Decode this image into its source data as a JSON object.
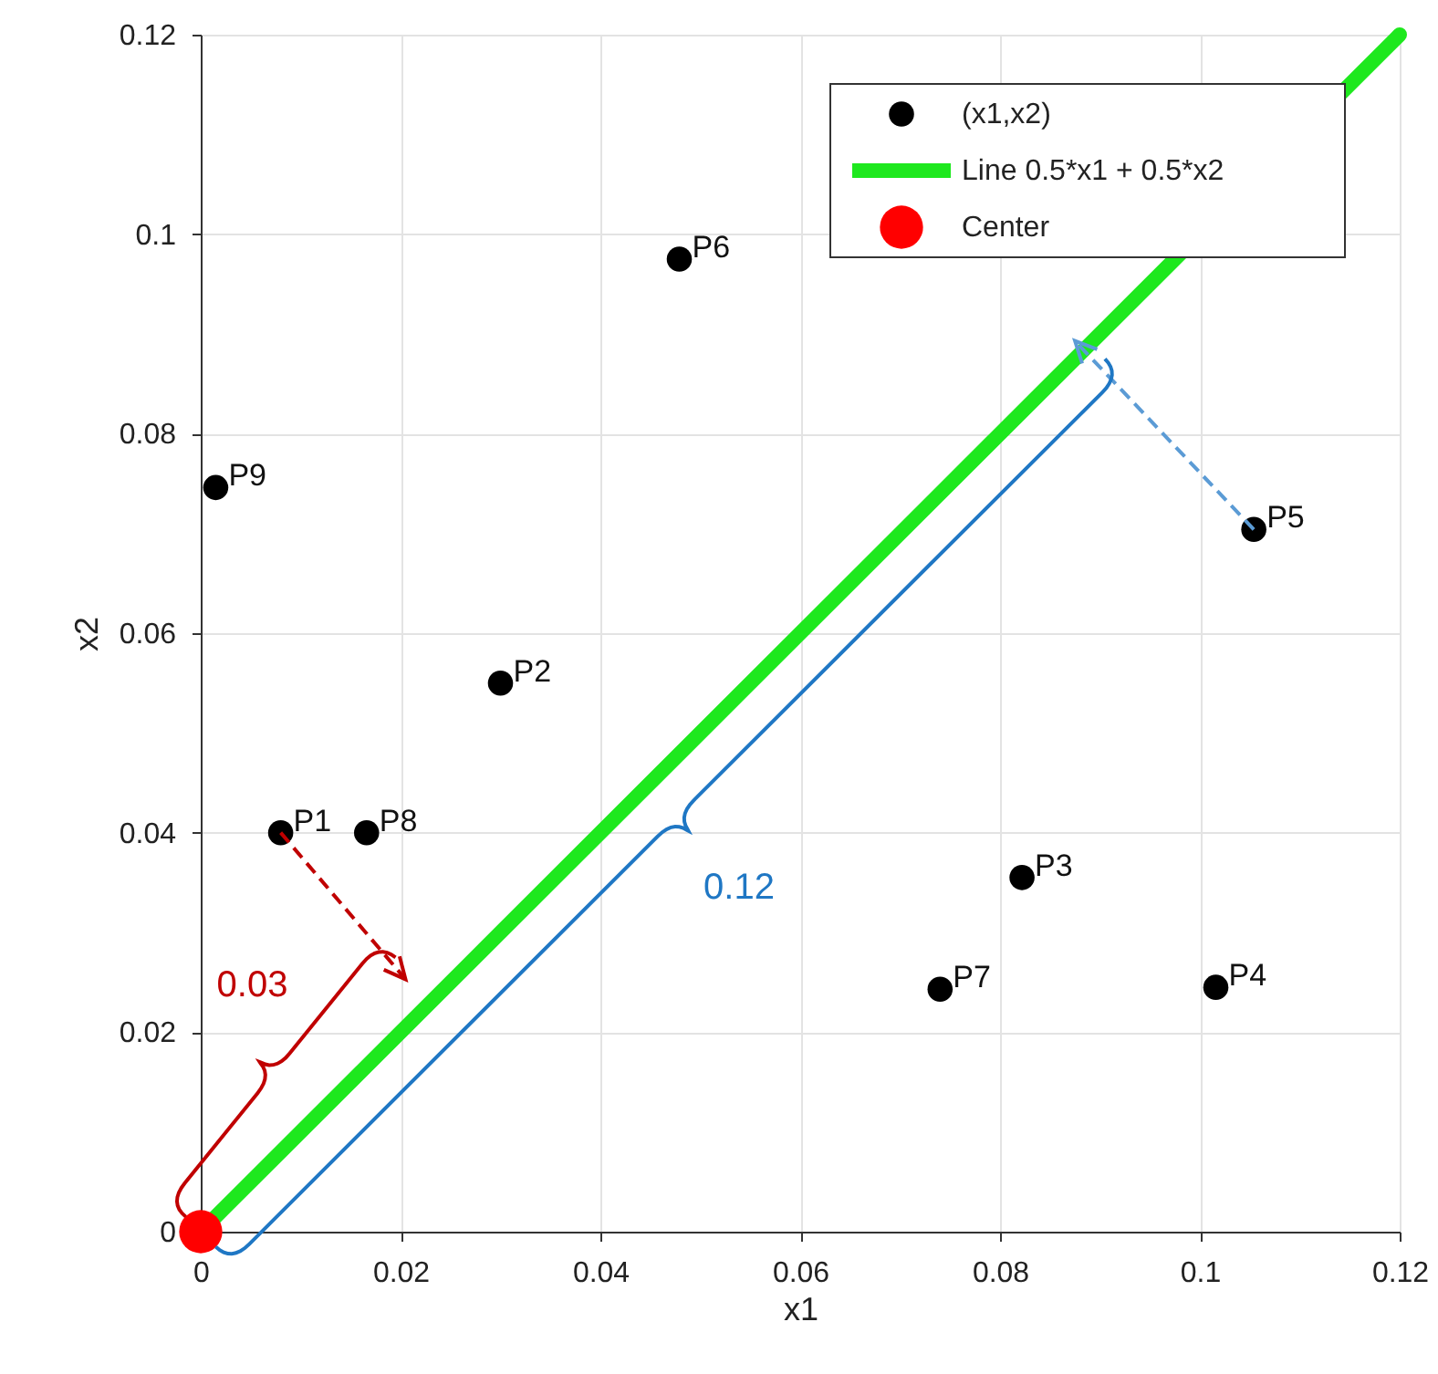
{
  "chart_data": {
    "type": "scatter",
    "xlabel": "x1",
    "ylabel": "x2",
    "xlim": [
      0,
      0.12
    ],
    "ylim": [
      0,
      0.12
    ],
    "xticks": [
      0,
      0.02,
      0.04,
      0.06,
      0.08,
      0.1,
      0.12
    ],
    "yticks": [
      0,
      0.02,
      0.04,
      0.06,
      0.08,
      0.1,
      0.12
    ],
    "grid": true,
    "legend": "top right",
    "series": [
      {
        "name": "(x1,x2)",
        "marker": "circle",
        "color": "#000000",
        "x": [
          0.008,
          0.03,
          0.0822,
          0.1016,
          0.1054,
          0.0479,
          0.074,
          0.0166,
          0.0015
        ],
        "values": [
          0.04,
          0.055,
          0.0355,
          0.0245,
          0.0704,
          0.0975,
          0.0243,
          0.04,
          0.0746
        ]
      },
      {
        "name": "Line 0.5*x1 + 0.5*x2",
        "type": "line",
        "color": "#1ee81e",
        "x": [
          0,
          0.12
        ],
        "values": [
          0,
          0.12
        ]
      },
      {
        "name": "Center",
        "marker": "circle",
        "color": "#ff0000",
        "x": [
          0
        ],
        "values": [
          0
        ]
      }
    ],
    "annotations": [
      {
        "text": "P1",
        "x": 0.008,
        "y": 0.04
      },
      {
        "text": "P2",
        "x": 0.03,
        "y": 0.055
      },
      {
        "text": "P3",
        "x": 0.0822,
        "y": 0.0355
      },
      {
        "text": "P4",
        "x": 0.1016,
        "y": 0.0245
      },
      {
        "text": "P5",
        "x": 0.1054,
        "y": 0.0704
      },
      {
        "text": "P6",
        "x": 0.0479,
        "y": 0.0975
      },
      {
        "text": "P7",
        "x": 0.074,
        "y": 0.0243
      },
      {
        "text": "P8",
        "x": 0.0166,
        "y": 0.04
      },
      {
        "text": "P9",
        "x": 0.0015,
        "y": 0.0746
      },
      "0.03",
      "0.12"
    ]
  }
}
